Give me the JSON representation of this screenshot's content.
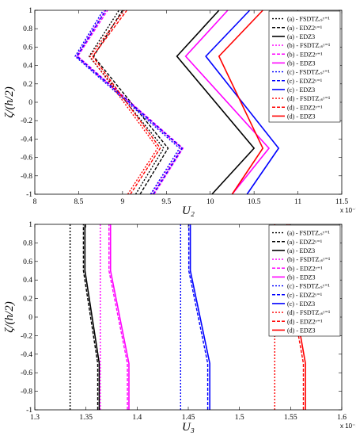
{
  "chart_data": [
    {
      "type": "line",
      "xlabel": "U₂",
      "ylabel": "ζ/(h/2)",
      "x_multiplier": "x 10⁻⁷",
      "xlim": [
        8,
        11.5
      ],
      "ylim": [
        -1,
        1
      ],
      "xticks": [
        "8",
        "8.5",
        "9",
        "9.5",
        "10",
        "10.5",
        "11",
        "11.5"
      ],
      "yticks": [
        "-1",
        "-0.8",
        "-0.6",
        "-0.4",
        "-0.2",
        "0",
        "0.2",
        "0.4",
        "0.6",
        "0.8",
        "1"
      ],
      "legend_position": "top-right",
      "series": [
        {
          "name": "(a) - FSDTZᵣₛʸ⁼¹",
          "color": "#000000",
          "dash": "2,2",
          "points": [
            [
              9.15,
              -1
            ],
            [
              9.47,
              -0.5
            ],
            [
              8.62,
              0.5
            ],
            [
              8.96,
              1
            ]
          ]
        },
        {
          "name": "(a) - EDZ2ʸ⁼¹",
          "color": "#000000",
          "dash": "4,2",
          "points": [
            [
              9.2,
              -1
            ],
            [
              9.52,
              -0.5
            ],
            [
              8.67,
              0.5
            ],
            [
              9.0,
              1
            ]
          ]
        },
        {
          "name": "(a) - EDZ3",
          "color": "#000000",
          "dash": "",
          "points": [
            [
              10.02,
              -1
            ],
            [
              10.5,
              -0.5
            ],
            [
              9.62,
              0.5
            ],
            [
              10.1,
              1
            ]
          ]
        },
        {
          "name": "(b) - FSDTZᵣₛʸ⁼¹",
          "color": "#ff00ff",
          "dash": "2,2",
          "points": [
            [
              9.33,
              -1
            ],
            [
              9.67,
              -0.5
            ],
            [
              8.47,
              0.5
            ],
            [
              8.8,
              1
            ]
          ]
        },
        {
          "name": "(b) - EDZ2ʸ⁼¹",
          "color": "#ff00ff",
          "dash": "4,2",
          "points": [
            [
              9.36,
              -1
            ],
            [
              9.69,
              -0.5
            ],
            [
              8.49,
              0.5
            ],
            [
              8.83,
              1
            ]
          ]
        },
        {
          "name": "(b) - EDZ3",
          "color": "#ff00ff",
          "dash": "",
          "points": [
            [
              10.25,
              -1
            ],
            [
              10.67,
              -0.5
            ],
            [
              9.72,
              0.5
            ],
            [
              10.2,
              1
            ]
          ]
        },
        {
          "name": "(c) - FSDTZᵣₛʸ⁼¹",
          "color": "#0000ff",
          "dash": "2,2",
          "points": [
            [
              9.32,
              -1
            ],
            [
              9.65,
              -0.5
            ],
            [
              8.46,
              0.5
            ],
            [
              8.78,
              1
            ]
          ]
        },
        {
          "name": "(c) - EDZ2ʸ⁼¹",
          "color": "#0000ff",
          "dash": "4,2",
          "points": [
            [
              9.35,
              -1
            ],
            [
              9.68,
              -0.5
            ],
            [
              8.48,
              0.5
            ],
            [
              8.81,
              1
            ]
          ]
        },
        {
          "name": "(c) - EDZ3",
          "color": "#0000ff",
          "dash": "",
          "points": [
            [
              10.42,
              -1
            ],
            [
              10.78,
              -0.5
            ],
            [
              9.95,
              0.5
            ],
            [
              10.45,
              1
            ]
          ]
        },
        {
          "name": "(d) - FSDTZᵣₛʸ⁼¹",
          "color": "#ff0000",
          "dash": "2,2",
          "points": [
            [
              9.06,
              -1
            ],
            [
              9.4,
              -0.5
            ],
            [
              8.63,
              0.5
            ],
            [
              9.02,
              1
            ]
          ]
        },
        {
          "name": "(d) - EDZ2ʸ⁼¹",
          "color": "#ff0000",
          "dash": "4,2",
          "points": [
            [
              9.09,
              -1
            ],
            [
              9.43,
              -0.5
            ],
            [
              8.66,
              0.5
            ],
            [
              9.05,
              1
            ]
          ]
        },
        {
          "name": "(d) - EDZ3",
          "color": "#ff0000",
          "dash": "",
          "points": [
            [
              10.25,
              -1
            ],
            [
              10.6,
              -0.5
            ],
            [
              10.1,
              0.5
            ],
            [
              10.6,
              1
            ]
          ]
        }
      ]
    },
    {
      "type": "line",
      "xlabel": "U₃",
      "ylabel": "ζ/(h/2)",
      "x_multiplier": "x 10⁻⁴",
      "xlim": [
        1.3,
        1.6
      ],
      "ylim": [
        -1,
        1
      ],
      "xticks": [
        "1.3",
        "1.35",
        "1.4",
        "1.45",
        "1.5",
        "1.55",
        "1.6"
      ],
      "yticks": [
        "-1",
        "-0.8",
        "-0.6",
        "-0.4",
        "-0.2",
        "0",
        "0.2",
        "0.4",
        "0.6",
        "0.8",
        "1"
      ],
      "legend_position": "top-right",
      "series": [
        {
          "name": "(a) - FSDTZᵣₛʸ⁼¹",
          "color": "#000000",
          "dash": "2,2",
          "points": [
            [
              1.3345,
              -1
            ],
            [
              1.3345,
              1
            ]
          ]
        },
        {
          "name": "(a) - EDZ2ʸ⁼¹",
          "color": "#000000",
          "dash": "4,2",
          "points": [
            [
              1.3615,
              -1
            ],
            [
              1.3615,
              -0.5
            ],
            [
              1.3475,
              0.5
            ],
            [
              1.3475,
              1
            ]
          ]
        },
        {
          "name": "(a) - EDZ3",
          "color": "#000000",
          "dash": "",
          "points": [
            [
              1.363,
              -1
            ],
            [
              1.363,
              -0.5
            ],
            [
              1.349,
              0.5
            ],
            [
              1.349,
              1
            ]
          ]
        },
        {
          "name": "(b) - FSDTZᵣₛʸ⁼¹",
          "color": "#ff00ff",
          "dash": "2,2",
          "points": [
            [
              1.364,
              -1
            ],
            [
              1.364,
              1
            ]
          ]
        },
        {
          "name": "(b) - EDZ2ʸ⁼¹",
          "color": "#ff00ff",
          "dash": "4,2",
          "points": [
            [
              1.3905,
              -1
            ],
            [
              1.3905,
              -0.5
            ],
            [
              1.3725,
              0.5
            ],
            [
              1.3725,
              1
            ]
          ]
        },
        {
          "name": "(b) - EDZ3",
          "color": "#ff00ff",
          "dash": "",
          "points": [
            [
              1.392,
              -1
            ],
            [
              1.392,
              -0.5
            ],
            [
              1.374,
              0.5
            ],
            [
              1.374,
              1
            ]
          ]
        },
        {
          "name": "(c) - FSDTZᵣₛʸ⁼¹",
          "color": "#0000ff",
          "dash": "2,2",
          "points": [
            [
              1.4425,
              -1
            ],
            [
              1.4425,
              1
            ]
          ]
        },
        {
          "name": "(c) - EDZ2ʸ⁼¹",
          "color": "#0000ff",
          "dash": "4,2",
          "points": [
            [
              1.469,
              -1
            ],
            [
              1.469,
              -0.5
            ],
            [
              1.4505,
              0.5
            ],
            [
              1.4505,
              1
            ]
          ]
        },
        {
          "name": "(c) - EDZ3",
          "color": "#0000ff",
          "dash": "",
          "points": [
            [
              1.471,
              -1
            ],
            [
              1.471,
              -0.5
            ],
            [
              1.452,
              0.5
            ],
            [
              1.452,
              1
            ]
          ]
        },
        {
          "name": "(d) - FSDTZᵣₛʸ⁼¹",
          "color": "#ff0000",
          "dash": "2,2",
          "points": [
            [
              1.5345,
              -1
            ],
            [
              1.5345,
              1
            ]
          ]
        },
        {
          "name": "(d) - EDZ2ʸ⁼¹",
          "color": "#ff0000",
          "dash": "4,2",
          "points": [
            [
              1.5625,
              -1
            ],
            [
              1.5625,
              -0.5
            ],
            [
              1.5465,
              0.5
            ],
            [
              1.5465,
              1
            ]
          ]
        },
        {
          "name": "(d) - EDZ3",
          "color": "#ff0000",
          "dash": "",
          "points": [
            [
              1.5645,
              -1
            ],
            [
              1.5645,
              -0.5
            ],
            [
              1.5485,
              0.5
            ],
            [
              1.5485,
              1
            ]
          ]
        }
      ]
    }
  ]
}
